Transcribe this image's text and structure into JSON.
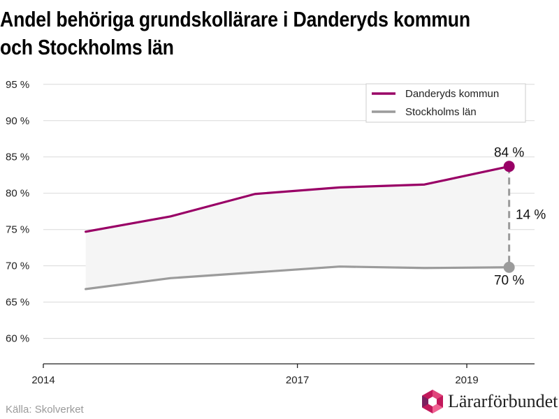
{
  "title_line1": "Andel behöriga grundskollärare i Danderyds kommun",
  "title_line2": "och Stockholms län",
  "source": "Källa: Skolverket",
  "logo_text": "Lärarförbundet",
  "colors": {
    "danderyd": "#990066",
    "stockholm": "#9b9b9b",
    "fill": "#f5f5f5",
    "grid": "#d9d9d9"
  },
  "chart_data": {
    "type": "line",
    "x": [
      2014.5,
      2015.5,
      2016.5,
      2017.5,
      2018.5,
      2019.5
    ],
    "series": [
      {
        "name": "Danderyds kommun",
        "values": [
          74.7,
          76.8,
          79.9,
          80.8,
          81.2,
          83.7
        ]
      },
      {
        "name": "Stockholms län",
        "values": [
          66.8,
          68.3,
          69.1,
          69.9,
          69.7,
          69.8
        ]
      }
    ],
    "xlim": [
      2014,
      2019.8
    ],
    "ylim": [
      56.5,
      97
    ],
    "yticks": [
      60,
      65,
      70,
      75,
      80,
      85,
      90,
      95
    ],
    "ytick_labels": [
      "60 %",
      "65 %",
      "70 %",
      "75 %",
      "80 %",
      "85 %",
      "90 %",
      "95 %"
    ],
    "xticks": [
      2014,
      2017,
      2019
    ],
    "xtick_labels": [
      "2014",
      "2017",
      "2019"
    ],
    "end_labels": {
      "danderyd": "84 %",
      "stockholm": "70 %",
      "difference": "14 %"
    },
    "grid": true,
    "legend_position": "top-right"
  }
}
